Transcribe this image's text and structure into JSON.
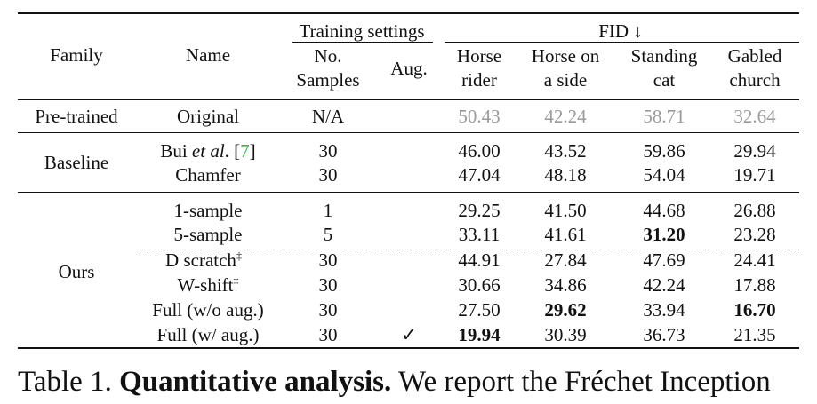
{
  "header": {
    "family": "Family",
    "name": "Name",
    "training_settings": "Training settings",
    "fid": "FID ↓",
    "no_samples_line1": "No.",
    "no_samples_line2": "Samples",
    "aug": "Aug.",
    "col1_line1": "Horse",
    "col1_line2": "rider",
    "col2_line1": "Horse on",
    "col2_line2": "a side",
    "col3_line1": "Standing",
    "col3_line2": "cat",
    "col4_line1": "Gabled",
    "col4_line2": "church"
  },
  "groups": {
    "pretrained": "Pre-trained",
    "baseline": "Baseline",
    "ours": "Ours"
  },
  "rows": [
    {
      "name": "Original",
      "samples": "N/A",
      "aug": "",
      "values": [
        "50.43",
        "42.24",
        "58.71",
        "32.64"
      ]
    },
    {
      "name_prefix": "Bui ",
      "name_italic": "et al",
      "name_mid": ". [",
      "name_ref": "7",
      "name_suffix": "]",
      "samples": "30",
      "aug": "",
      "values": [
        "46.00",
        "43.52",
        "59.86",
        "29.94"
      ]
    },
    {
      "name": "Chamfer",
      "samples": "30",
      "aug": "",
      "values": [
        "47.04",
        "48.18",
        "54.04",
        "19.71"
      ]
    },
    {
      "name": "1-sample",
      "samples": "1",
      "aug": "",
      "values": [
        "29.25",
        "41.50",
        "44.68",
        "26.88"
      ]
    },
    {
      "name": "5-sample",
      "samples": "5",
      "aug": "",
      "values": [
        "33.11",
        "41.61",
        "31.20",
        "23.28"
      ]
    },
    {
      "name": "D scratch",
      "name_sup": "‡",
      "samples": "30",
      "aug": "",
      "values": [
        "44.91",
        "27.84",
        "47.69",
        "24.41"
      ]
    },
    {
      "name": "W-shift",
      "name_sup": "‡",
      "samples": "30",
      "aug": "",
      "values": [
        "30.66",
        "34.86",
        "42.24",
        "17.88"
      ]
    },
    {
      "name": "Full (w/o aug.)",
      "samples": "30",
      "aug": "",
      "values": [
        "27.50",
        "29.62",
        "33.94",
        "16.70"
      ]
    },
    {
      "name": "Full (w/ aug.)",
      "samples": "30",
      "aug": "✓",
      "values": [
        "19.94",
        "30.39",
        "36.73",
        "21.35"
      ]
    }
  ],
  "caption": {
    "label": "Table 1.",
    "title": "Quantitative analysis.",
    "text": "We report the Fréchet Inception"
  }
}
